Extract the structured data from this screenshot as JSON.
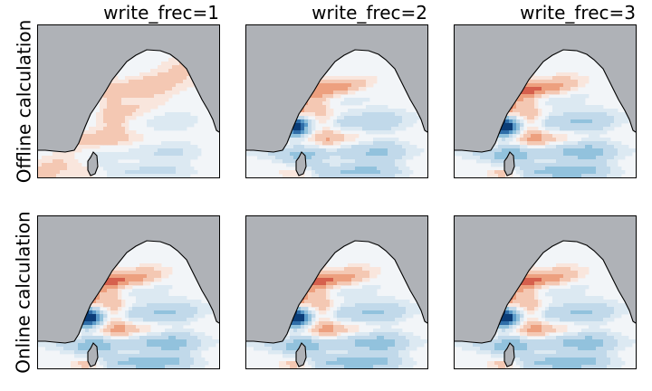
{
  "figure": {
    "column_titles": [
      "write_frec=1",
      "write_frec=2",
      "write_frec=3"
    ],
    "row_labels": [
      "Offline calculation",
      "Online calculation"
    ]
  },
  "colors": {
    "land": "#afb2b7",
    "ocean_background": "#f2f5f8",
    "coastline": "#000000",
    "colormap": "RdBu_r"
  },
  "chart_data": {
    "type": "heatmap",
    "layout": "2x3 grid of filled-contour maps of the Bay of Bengal region",
    "colormap": "RdBu_r",
    "panels": [
      {
        "row": "Offline calculation",
        "column": "write_frec=1",
        "intensity": 0.45,
        "dipole": 0.0,
        "grad_east": 0.9
      },
      {
        "row": "Offline calculation",
        "column": "write_frec=2",
        "intensity": 0.85,
        "dipole": 0.85,
        "grad_east": 0.0
      },
      {
        "row": "Offline calculation",
        "column": "write_frec=3",
        "intensity": 1.0,
        "dipole": 1.0,
        "grad_east": 0.0
      },
      {
        "row": "Online calculation",
        "column": "write_frec=1",
        "intensity": 1.0,
        "dipole": 1.0,
        "grad_east": 0.0
      },
      {
        "row": "Online calculation",
        "column": "write_frec=2",
        "intensity": 1.0,
        "dipole": 1.0,
        "grad_east": 0.0
      },
      {
        "row": "Online calculation",
        "column": "write_frec=3",
        "intensity": 1.0,
        "dipole": 1.0,
        "grad_east": 0.0
      }
    ]
  }
}
